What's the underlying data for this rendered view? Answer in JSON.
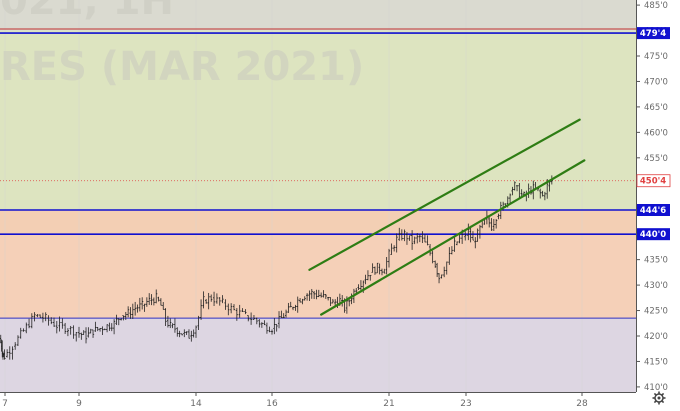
{
  "chart_data": {
    "type": "candlestick",
    "watermark": "021, 1H",
    "watermark2": "RES (MAR 2021)",
    "x_ticks": [
      {
        "label": "7",
        "day": 7
      },
      {
        "label": "9",
        "day": 9
      },
      {
        "label": "14",
        "day": 14
      },
      {
        "label": "16",
        "day": 16
      },
      {
        "label": "21",
        "day": 21
      },
      {
        "label": "23",
        "day": 23
      },
      {
        "label": "28",
        "day": 28
      }
    ],
    "y_ticks": [
      "485'0",
      "480'0",
      "475'0",
      "470'0",
      "465'0",
      "460'0",
      "455'0",
      "450'0",
      "445'0",
      "440'0",
      "435'0",
      "430'0",
      "425'0",
      "420'0",
      "415'0",
      "410'0"
    ],
    "y_range": [
      409,
      486
    ],
    "zones": [
      {
        "from": 444.75,
        "to": 480,
        "color": "#dde4c0"
      },
      {
        "from": 440,
        "to": 444.75,
        "color": "#f3cfb4"
      },
      {
        "from": 423.5,
        "to": 440,
        "color": "#f5d0b8"
      },
      {
        "from": 409,
        "to": 423.5,
        "color": "#ddd6e2"
      },
      {
        "from": 480,
        "to": 486,
        "color": "#dadad0"
      }
    ],
    "levels": [
      {
        "price": 479.5,
        "label": "479'4",
        "color": "#1010d0"
      },
      {
        "price": 444.75,
        "label": "444'6",
        "color": "#1010d0"
      },
      {
        "price": 440,
        "label": "440'0",
        "color": "#1010d0"
      },
      {
        "price": 423.5,
        "label": "",
        "color": "#3030c0"
      }
    ],
    "last_price": {
      "price": 450.5,
      "label": "450'4",
      "color": "#e04040"
    },
    "channel_lines": [
      {
        "from": {
          "day": 17.6,
          "price": 433
        },
        "to": {
          "day": 27.9,
          "price": 462.5
        },
        "color": "#2e7d14"
      },
      {
        "from": {
          "day": 18.1,
          "price": 424.2
        },
        "to": {
          "day": 28.1,
          "price": 454.5
        },
        "color": "#2e7d14"
      }
    ],
    "price_path": [
      [
        6.0,
        419.5
      ],
      [
        6.3,
        418.0
      ],
      [
        6.6,
        416.5
      ],
      [
        6.9,
        416.0
      ],
      [
        7.2,
        418.0
      ],
      [
        7.5,
        421.0
      ],
      [
        7.8,
        424.0
      ],
      [
        8.1,
        423.5
      ],
      [
        8.4,
        422.0
      ],
      [
        8.7,
        421.5
      ],
      [
        9.0,
        420.5
      ],
      [
        9.3,
        420.0
      ],
      [
        9.6,
        421.0
      ],
      [
        9.9,
        421.5
      ],
      [
        10.2,
        422.0
      ],
      [
        10.5,
        422.5
      ],
      [
        10.8,
        424.0
      ],
      [
        11.1,
        424.5
      ],
      [
        11.4,
        425.5
      ],
      [
        11.7,
        426.0
      ],
      [
        12.0,
        427.0
      ],
      [
        12.3,
        427.5
      ],
      [
        12.5,
        426.0
      ],
      [
        12.7,
        423.0
      ],
      [
        12.9,
        422.0
      ],
      [
        13.1,
        421.5
      ],
      [
        13.4,
        420.5
      ],
      [
        13.7,
        420.0
      ],
      [
        14.0,
        422.0
      ],
      [
        14.2,
        427.0
      ],
      [
        14.4,
        427.5
      ],
      [
        14.7,
        426.5
      ],
      [
        15.0,
        425.0
      ],
      [
        15.3,
        424.0
      ],
      [
        15.6,
        423.0
      ],
      [
        15.8,
        422.0
      ],
      [
        16.0,
        421.5
      ],
      [
        16.2,
        422.5
      ],
      [
        16.5,
        424.0
      ],
      [
        16.8,
        425.5
      ],
      [
        17.1,
        427.0
      ],
      [
        17.4,
        428.0
      ],
      [
        17.7,
        428.5
      ],
      [
        18.0,
        428.0
      ],
      [
        18.3,
        427.5
      ],
      [
        18.6,
        426.5
      ],
      [
        18.9,
        427.0
      ],
      [
        19.1,
        425.5
      ],
      [
        19.3,
        427.0
      ],
      [
        19.6,
        429.5
      ],
      [
        19.9,
        431.0
      ],
      [
        20.2,
        432.5
      ],
      [
        20.5,
        433.5
      ],
      [
        20.8,
        433.0
      ],
      [
        21.0,
        436.0
      ],
      [
        21.2,
        439.0
      ],
      [
        21.4,
        440.0
      ],
      [
        21.6,
        438.5
      ],
      [
        21.8,
        439.5
      ],
      [
        22.0,
        437.5
      ],
      [
        22.2,
        434.0
      ],
      [
        22.3,
        431.5
      ],
      [
        22.5,
        434.5
      ],
      [
        22.7,
        438.0
      ],
      [
        22.9,
        439.5
      ],
      [
        23.1,
        440.5
      ],
      [
        23.3,
        438.5
      ],
      [
        23.5,
        440.0
      ],
      [
        23.7,
        442.0
      ],
      [
        23.9,
        443.0
      ],
      [
        24.1,
        441.5
      ],
      [
        24.3,
        443.5
      ],
      [
        24.5,
        445.0
      ],
      [
        24.7,
        446.0
      ],
      [
        24.9,
        448.5
      ],
      [
        25.1,
        449.5
      ],
      [
        25.3,
        448.0
      ],
      [
        25.5,
        447.5
      ],
      [
        25.7,
        448.5
      ],
      [
        25.9,
        449.0
      ],
      [
        26.1,
        448.5
      ],
      [
        26.3,
        447.5
      ],
      [
        26.5,
        449.5
      ],
      [
        26.7,
        450.5
      ]
    ],
    "colors": {
      "bull": "#222222",
      "bear": "#222222",
      "axis_text": "#6a6a6a",
      "grid": "#d4d4d4"
    }
  },
  "toolbar": {
    "settings_icon": "gear-icon"
  }
}
